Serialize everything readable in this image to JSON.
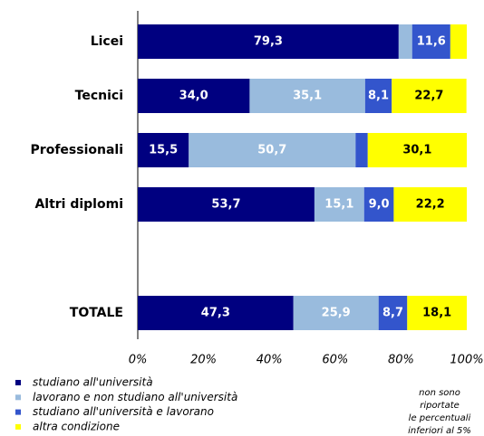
{
  "chart_data": {
    "type": "stacked_barh",
    "categories": [
      "Licei",
      "Tecnici",
      "Professionali",
      "Altri diplomi",
      null,
      "TOTALE"
    ],
    "series": [
      {
        "name": "studiano all'università",
        "color": "#000080",
        "label_color": "#ffffff",
        "values": [
          79.3,
          34.0,
          15.5,
          53.7,
          null,
          47.3
        ],
        "value_labels": [
          "79,3",
          "34,0",
          "15,5",
          "53,7",
          null,
          "47,3"
        ]
      },
      {
        "name": "lavorano e non studiano all'università",
        "color": "#99bbdd",
        "label_color": "#ffffff",
        "values": [
          4.1,
          35.1,
          50.7,
          15.1,
          null,
          25.9
        ],
        "value_labels": [
          null,
          "35,1",
          "50,7",
          "15,1",
          null,
          "25,9"
        ]
      },
      {
        "name": "studiano all'università e lavorano",
        "color": "#3355cc",
        "label_color": "#ffffff",
        "values": [
          11.6,
          8.1,
          3.7,
          9.0,
          null,
          8.7
        ],
        "value_labels": [
          "11,6",
          "8,1",
          null,
          "9,0",
          null,
          "8,7"
        ]
      },
      {
        "name": "altra condizione",
        "color": "#ffff00",
        "label_color": "#000000",
        "values": [
          5.0,
          22.7,
          30.1,
          22.2,
          null,
          18.1
        ],
        "value_labels": [
          null,
          "22,7",
          "30,1",
          "22,2",
          null,
          "18,1"
        ]
      }
    ],
    "xlim": [
      0,
      100
    ],
    "xticks": [
      {
        "value": 0,
        "label": "0%"
      },
      {
        "value": 20,
        "label": "20%"
      },
      {
        "value": 40,
        "label": "40%"
      },
      {
        "value": 60,
        "label": "60%"
      },
      {
        "value": 80,
        "label": "80%"
      },
      {
        "value": 100,
        "label": "100%"
      }
    ],
    "note": [
      "non sono",
      "riportate",
      "le percentuali",
      "inferiori al 5%"
    ]
  }
}
